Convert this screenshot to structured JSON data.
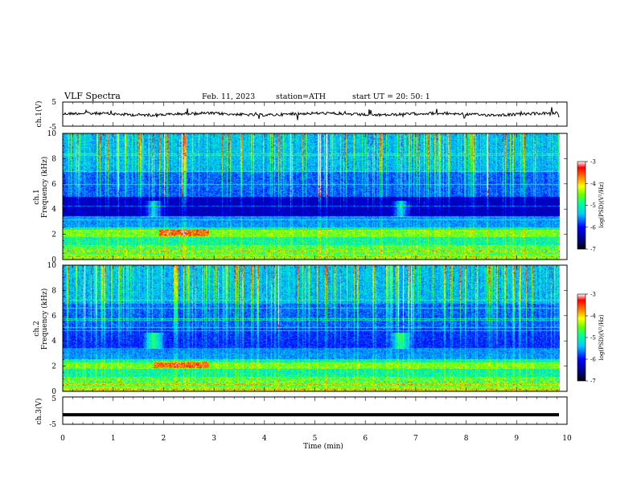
{
  "header": {
    "title": "VLF  Spectra",
    "date": "Feb. 11, 2023",
    "station": "station=ATH",
    "start": "start  UT  =    20: 50: 1"
  },
  "chart_data": [
    {
      "type": "line",
      "name": "ch1-waveform",
      "ylabel": "ch.1(V)",
      "ylim": [
        -5,
        5
      ],
      "yticks": [
        "5",
        "-5"
      ],
      "xlim": [
        0,
        10
      ],
      "trace_level": 0,
      "color": "#000000"
    },
    {
      "type": "heatmap",
      "name": "ch1-spectrogram",
      "ylabel": "ch.1\nFrequency (kHz)",
      "ylabel_line1": "ch.1",
      "ylabel_line2": "Frequency  (kHz)",
      "ylim": [
        0,
        10
      ],
      "yticks": [
        "0",
        "2",
        "4",
        "6",
        "8",
        "10"
      ],
      "xlim": [
        0,
        9.85
      ],
      "colorbar": {
        "label": "log(PSD)(V²/Hz)",
        "ticks": [
          "-3",
          "-4",
          "-5",
          "-6",
          "-7"
        ],
        "range": [
          -7,
          -3
        ]
      },
      "features": {
        "quiet_band_khz": [
          3.5,
          5.0
        ],
        "bright_patches_min": [
          1.8,
          6.7
        ],
        "band_2khz_span_min": [
          1.9,
          2.9
        ]
      }
    },
    {
      "type": "heatmap",
      "name": "ch2-spectrogram",
      "ylabel_line1": "ch.2",
      "ylabel_line2": "Frequency  (kHz)",
      "ylim": [
        0,
        10
      ],
      "yticks": [
        "0",
        "2",
        "4",
        "6",
        "8",
        "10"
      ],
      "xlim": [
        0,
        9.85
      ],
      "colorbar": {
        "label": "log(PSD)(V²/Hz)",
        "ticks": [
          "-3",
          "-4",
          "-5",
          "-6",
          "-7"
        ],
        "range": [
          -7,
          -3
        ]
      },
      "features": {
        "bright_patches_min": [
          1.8,
          6.7
        ],
        "band_2khz_span_min": [
          1.8,
          2.9
        ]
      }
    },
    {
      "type": "line",
      "name": "ch3-waveform",
      "ylabel": "ch.3(V)",
      "ylim": [
        -5,
        5
      ],
      "yticks": [
        "5",
        "-5"
      ],
      "xlim": [
        0,
        10
      ],
      "trace_level": -1.5,
      "color": "#000000"
    }
  ],
  "xaxis": {
    "label": "Time  (min)",
    "ticks": [
      "0",
      "1",
      "2",
      "3",
      "4",
      "5",
      "6",
      "7",
      "8",
      "9",
      "10"
    ],
    "range": [
      0,
      10
    ]
  },
  "colors": {
    "background": "#ffffff",
    "axes": "#000000",
    "colormap": [
      "#000066",
      "#0000ff",
      "#00aaff",
      "#00ffcc",
      "#66ff33",
      "#ffff00",
      "#ff6600",
      "#ff0000",
      "#ffffff"
    ]
  }
}
